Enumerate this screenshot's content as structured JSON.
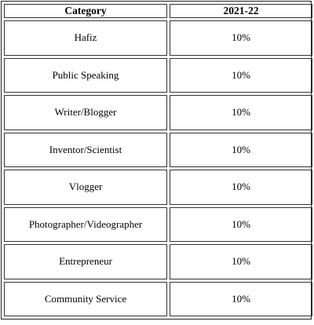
{
  "table": {
    "headers": [
      "Category",
      "2021-22"
    ],
    "rows": [
      {
        "category": "Hafiz",
        "value": "10%"
      },
      {
        "category": "Public Speaking",
        "value": "10%"
      },
      {
        "category": "Writer/Blogger",
        "value": "10%"
      },
      {
        "category": "Inventor/Scientist",
        "value": "10%"
      },
      {
        "category": "Vlogger",
        "value": "10%"
      },
      {
        "category": "Photographer/Videographer",
        "value": "10%"
      },
      {
        "category": "Entrepreneur",
        "value": "10%"
      },
      {
        "category": "Community Service",
        "value": "10%"
      }
    ]
  }
}
